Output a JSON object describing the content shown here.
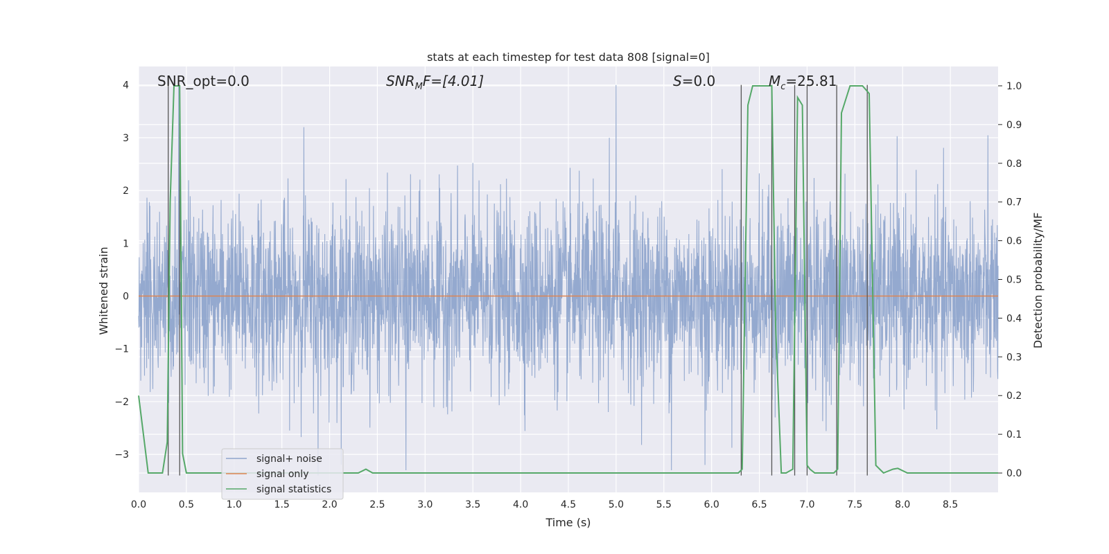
{
  "chart_data": {
    "type": "line",
    "title": "stats at each timestep for test data 808 [signal=0]",
    "xlabel": "Time (s)",
    "ylabel_left": "Whitened strain",
    "ylabel_right": "Detection probability/MF",
    "xlim": [
      0.0,
      9.0
    ],
    "ylim_left": [
      -3.72,
      4.35
    ],
    "ylim_right": [
      -0.05,
      1.05
    ],
    "x_ticks": [
      "0.0",
      "0.5",
      "1.0",
      "1.5",
      "2.0",
      "2.5",
      "3.0",
      "3.5",
      "4.0",
      "4.5",
      "5.0",
      "5.5",
      "6.0",
      "6.5",
      "7.0",
      "7.5",
      "8.0",
      "8.5"
    ],
    "x_tick_values": [
      0.0,
      0.5,
      1.0,
      1.5,
      2.0,
      2.5,
      3.0,
      3.5,
      4.0,
      4.5,
      5.0,
      5.5,
      6.0,
      6.5,
      7.0,
      7.5,
      8.0,
      8.5
    ],
    "y_left_ticks": [
      "−3",
      "−2",
      "−1",
      "0",
      "1",
      "2",
      "3",
      "4"
    ],
    "y_left_tick_values": [
      -3,
      -2,
      -1,
      0,
      1,
      2,
      3,
      4
    ],
    "y_right_ticks": [
      "0.0",
      "0.1",
      "0.2",
      "0.3",
      "0.4",
      "0.5",
      "0.6",
      "0.7",
      "0.8",
      "0.9",
      "1.0"
    ],
    "y_right_tick_values": [
      0.0,
      0.1,
      0.2,
      0.3,
      0.4,
      0.5,
      0.6,
      0.7,
      0.8,
      0.9,
      1.0
    ],
    "grid": true,
    "legend_position": "lower-left",
    "annotations": {
      "snr_opt": "SNR_opt=0.0",
      "snr_mf_base": "SNR",
      "snr_mf_sub": "M",
      "snr_mf_rest": "F=[4.01]",
      "s_ital": "S",
      "s_rest": "=0.0",
      "mc_ital": "M",
      "mc_sub": "c",
      "mc_rest": "=25.81"
    },
    "series": [
      {
        "name": "signal+ noise",
        "color": "#8fa5cc",
        "description_values": "noise band, mostly within [-1.3, 1.3], spikes to about 4.0 and -3.4",
        "peaks": [
          [
            0.42,
            4.0
          ],
          [
            1.73,
            3.2
          ],
          [
            5.0,
            4.0
          ],
          [
            4.93,
            3.0
          ],
          [
            1.88,
            -3.4
          ],
          [
            2.8,
            -3.3
          ],
          [
            5.58,
            -3.3
          ],
          [
            5.93,
            -3.2
          ]
        ]
      },
      {
        "name": "signal only",
        "color": "#dd8452",
        "x": [
          0.0,
          9.0
        ],
        "y": [
          0.0,
          0.0
        ]
      },
      {
        "name": "signal statistics",
        "color": "#55a868",
        "axis": "right",
        "x": [
          0.0,
          0.05,
          0.1,
          0.25,
          0.3,
          0.33,
          0.37,
          0.4,
          0.43,
          0.46,
          0.5,
          0.55,
          2.3,
          2.38,
          2.45,
          2.8,
          3.1,
          3.2,
          5.8,
          5.95,
          6.28,
          6.32,
          6.38,
          6.43,
          6.5,
          6.6,
          6.63,
          6.67,
          6.73,
          6.78,
          6.85,
          6.9,
          6.95,
          7.0,
          7.03,
          7.08,
          7.15,
          7.28,
          7.32,
          7.36,
          7.45,
          7.58,
          7.65,
          7.72,
          7.8,
          7.9,
          7.95,
          8.05,
          8.2,
          9.0
        ],
        "y": [
          0.2,
          0.1,
          0.0,
          0.0,
          0.08,
          0.7,
          1.0,
          1.0,
          1.0,
          0.05,
          0.0,
          0.0,
          0.0,
          0.01,
          0.0,
          0.0,
          0.0,
          0.0,
          0.0,
          0.0,
          0.0,
          0.01,
          0.95,
          1.0,
          1.0,
          1.0,
          1.0,
          0.38,
          0.0,
          0.0,
          0.01,
          0.97,
          0.95,
          0.02,
          0.01,
          0.0,
          0.0,
          0.0,
          0.01,
          0.93,
          1.0,
          1.0,
          0.98,
          0.02,
          0.0,
          0.01,
          0.012,
          0.0,
          0.0,
          0.0
        ]
      }
    ],
    "vertical_markers": [
      0.31,
      0.43,
      6.31,
      6.63,
      6.87,
      7.0,
      7.31,
      7.63
    ]
  }
}
